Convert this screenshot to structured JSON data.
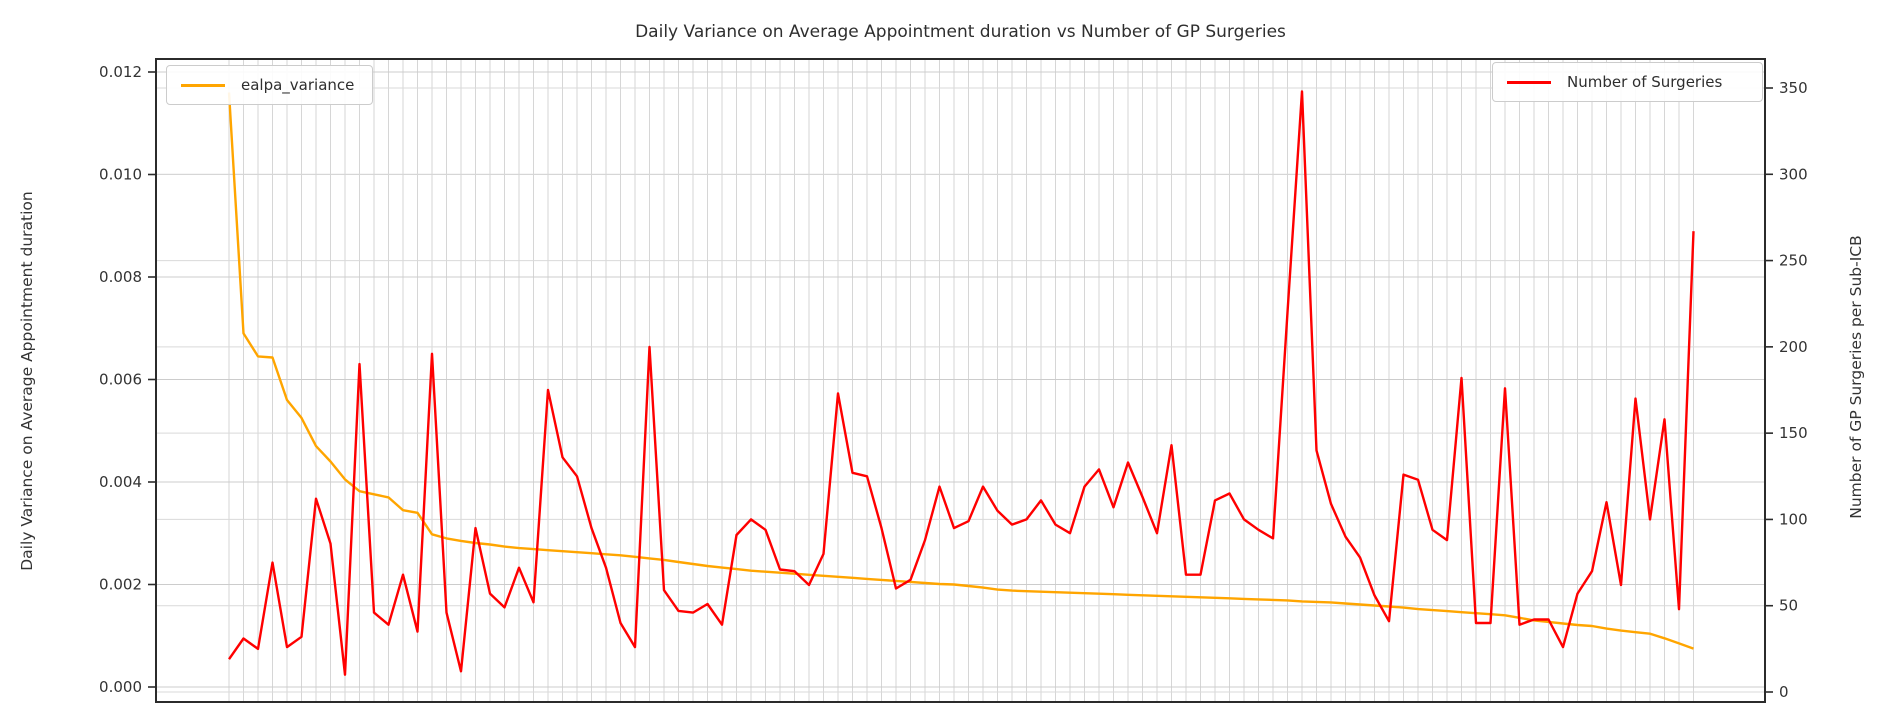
{
  "chart_data": {
    "type": "line",
    "title": "Daily Variance on Average Appointment duration vs Number of GP Surgeries",
    "ylabel_left": "Daily Variance on Average Appointment duration",
    "ylabel_right": "Number of GP Surgeries per Sub-ICB",
    "grid": "on",
    "x_tick_labels": "none",
    "n_points": 102,
    "ylim_left": [
      0.0,
      0.012
    ],
    "ylim_right": [
      0,
      350
    ],
    "yticks_left": [
      "0.000",
      "0.002",
      "0.004",
      "0.006",
      "0.008",
      "0.010",
      "0.012"
    ],
    "yticks_right": [
      "0",
      "50",
      "100",
      "150",
      "200",
      "250",
      "300",
      "350"
    ],
    "legend_left": {
      "label": "ealpa_variance",
      "color": "#ffa500",
      "position": "upper left"
    },
    "legend_right": {
      "label": "Number of Surgeries",
      "color": "#ff0000",
      "position": "upper right"
    },
    "series": [
      {
        "name": "ealpa_variance",
        "axis": "left",
        "color": "#ffa500",
        "values": [
          0.0116,
          0.0069,
          0.00645,
          0.00643,
          0.0056,
          0.00525,
          0.0047,
          0.0044,
          0.00405,
          0.00382,
          0.00376,
          0.0037,
          0.00345,
          0.0034,
          0.00298,
          0.0029,
          0.00285,
          0.00281,
          0.00278,
          0.00274,
          0.00271,
          0.00269,
          0.00267,
          0.00265,
          0.00263,
          0.00261,
          0.00259,
          0.00257,
          0.00254,
          0.00251,
          0.00248,
          0.00244,
          0.0024,
          0.00236,
          0.00233,
          0.0023,
          0.00227,
          0.00225,
          0.00223,
          0.00221,
          0.00219,
          0.00217,
          0.00215,
          0.00213,
          0.00211,
          0.00209,
          0.00207,
          0.00205,
          0.00203,
          0.00201,
          0.002,
          0.00197,
          0.00194,
          0.0019,
          0.00188,
          0.00187,
          0.00186,
          0.00185,
          0.00184,
          0.00183,
          0.00182,
          0.00181,
          0.0018,
          0.00179,
          0.00178,
          0.00177,
          0.00176,
          0.00175,
          0.00174,
          0.00173,
          0.00172,
          0.00171,
          0.0017,
          0.00169,
          0.00167,
          0.00166,
          0.00165,
          0.00163,
          0.00161,
          0.00159,
          0.00157,
          0.00155,
          0.00152,
          0.0015,
          0.00148,
          0.00146,
          0.00144,
          0.00142,
          0.0014,
          0.00135,
          0.0013,
          0.00127,
          0.00124,
          0.00121,
          0.00119,
          0.00114,
          0.0011,
          0.00107,
          0.00104,
          0.00095,
          0.00085,
          0.00075
        ]
      },
      {
        "name": "Number of Surgeries",
        "axis": "right",
        "color": "#ff0000",
        "values": [
          19,
          31,
          25,
          75,
          26,
          32,
          112,
          86,
          10,
          190,
          46,
          39,
          68,
          35,
          196,
          46,
          12,
          95,
          57,
          49,
          72,
          52,
          175,
          136,
          125,
          95,
          72,
          40,
          26,
          200,
          59,
          47,
          46,
          51,
          39,
          91,
          100,
          94,
          71,
          70,
          62,
          80,
          173,
          127,
          125,
          95,
          60,
          65,
          88,
          119,
          95,
          99,
          119,
          105,
          97,
          100,
          111,
          97,
          92,
          119,
          129,
          107,
          133,
          113,
          92,
          143,
          68,
          68,
          111,
          115,
          100,
          94,
          89,
          220,
          348,
          140,
          109,
          90,
          78,
          56,
          41,
          126,
          123,
          94,
          88,
          182,
          40,
          40,
          176,
          39,
          42,
          42,
          26,
          57,
          70,
          110,
          62,
          170,
          100,
          158,
          48,
          267
        ]
      }
    ]
  }
}
